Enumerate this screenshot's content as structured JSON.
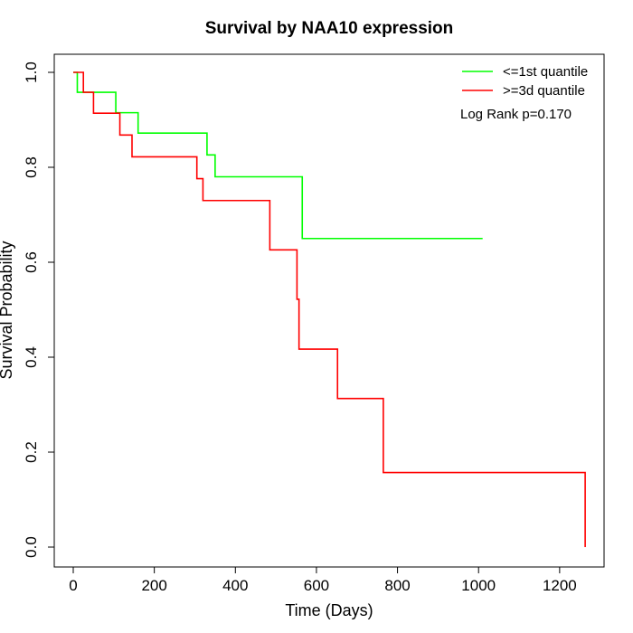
{
  "chart_data": {
    "type": "line",
    "title": "Survival by NAA10 expression",
    "xlabel": "Time (Days)",
    "ylabel": "Survival Probability",
    "xlim": [
      0,
      1265
    ],
    "ylim": [
      0,
      1.0
    ],
    "xticks": [
      0,
      200,
      400,
      600,
      800,
      1000,
      1200
    ],
    "xtick_labels": [
      "0",
      "200",
      "400",
      "600",
      "800",
      "1000",
      "1200"
    ],
    "yticks": [
      0.0,
      0.2,
      0.4,
      0.6,
      0.8,
      1.0
    ],
    "ytick_labels": [
      "0.0",
      "0.2",
      "0.4",
      "0.6",
      "0.8",
      "1.0"
    ],
    "grid": false,
    "legend_position": "top-right",
    "annotation": "Log Rank p=0.170",
    "series": [
      {
        "name": "<=1st quantile",
        "color": "#00ff00",
        "step": true,
        "x": [
          0,
          10,
          105,
          160,
          330,
          350,
          565,
          1010
        ],
        "y": [
          1.0,
          0.958,
          0.915,
          0.872,
          0.826,
          0.78,
          0.65,
          0.65
        ]
      },
      {
        "name": ">=3d quantile",
        "color": "#ff0000",
        "step": true,
        "x": [
          0,
          25,
          50,
          115,
          145,
          305,
          320,
          485,
          552,
          557,
          652,
          765,
          1263
        ],
        "y": [
          1.0,
          0.958,
          0.914,
          0.868,
          0.822,
          0.776,
          0.73,
          0.626,
          0.522,
          0.417,
          0.313,
          0.157,
          0.0
        ]
      }
    ]
  }
}
